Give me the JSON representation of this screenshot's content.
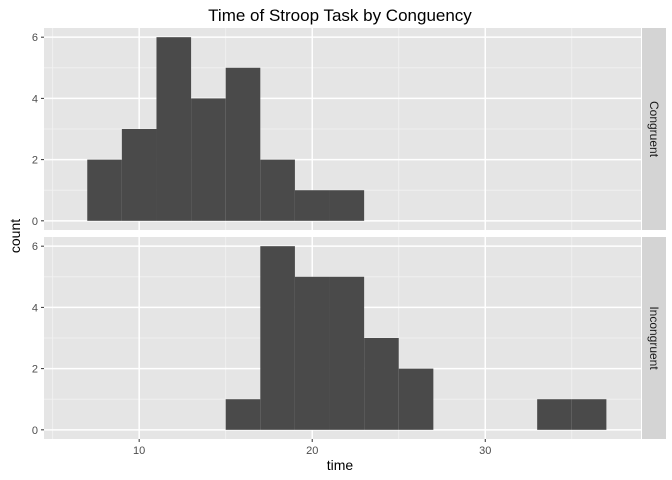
{
  "chart_data": {
    "type": "bar",
    "title": "Time of Stroop Task by Conguency",
    "xlabel": "time",
    "ylabel": "count",
    "xlim": [
      4.5,
      39
    ],
    "ylim": [
      -0.3,
      6.3
    ],
    "x_ticks": [
      10,
      20,
      30
    ],
    "y_ticks": [
      0,
      2,
      4,
      6
    ],
    "grid": true,
    "bin_width": 2,
    "panels": [
      {
        "name": "Congruent",
        "bins": [
          {
            "x0": 7,
            "x1": 9,
            "count": 2
          },
          {
            "x0": 9,
            "x1": 11,
            "count": 3
          },
          {
            "x0": 11,
            "x1": 13,
            "count": 6
          },
          {
            "x0": 13,
            "x1": 15,
            "count": 4
          },
          {
            "x0": 15,
            "x1": 17,
            "count": 5
          },
          {
            "x0": 17,
            "x1": 19,
            "count": 2
          },
          {
            "x0": 19,
            "x1": 21,
            "count": 1
          },
          {
            "x0": 21,
            "x1": 23,
            "count": 1
          }
        ]
      },
      {
        "name": "Incongruent",
        "bins": [
          {
            "x0": 15,
            "x1": 17,
            "count": 1
          },
          {
            "x0": 17,
            "x1": 19,
            "count": 6
          },
          {
            "x0": 19,
            "x1": 21,
            "count": 5
          },
          {
            "x0": 21,
            "x1": 23,
            "count": 5
          },
          {
            "x0": 23,
            "x1": 25,
            "count": 3
          },
          {
            "x0": 25,
            "x1": 27,
            "count": 2
          },
          {
            "x0": 33,
            "x1": 35,
            "count": 1
          },
          {
            "x0": 35,
            "x1": 37,
            "count": 1
          }
        ]
      }
    ]
  },
  "colors": {
    "panel_background": "#e5e5e5",
    "grid_major": "#ffffff",
    "grid_minor": "#f2f2f2",
    "bar_fill": "#4a4a4a",
    "strip_background": "#d4d4d4"
  }
}
